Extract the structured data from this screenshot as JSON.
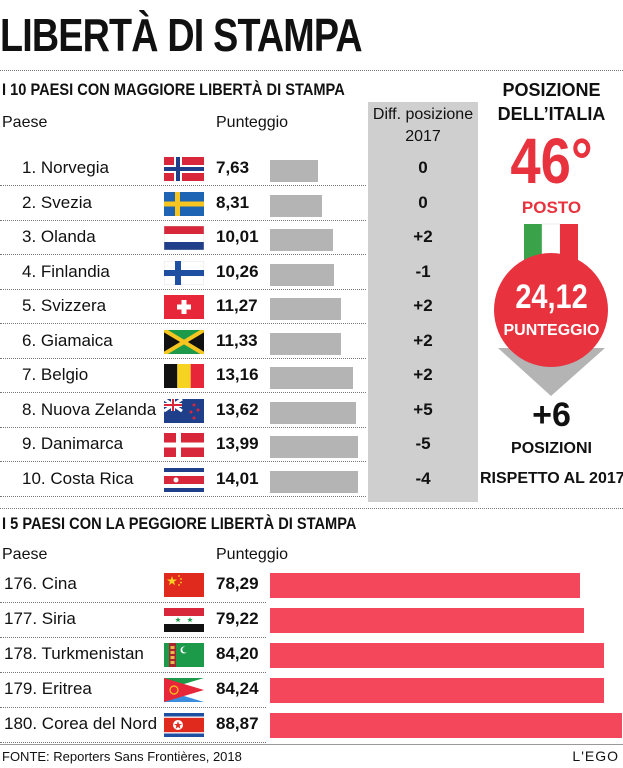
{
  "title": "LIBERTÀ DI STAMPA",
  "top": {
    "section_title": "I 10 PAESI CON MAGGIORE LIBERTÀ DI STAMPA",
    "col_country": "Paese",
    "col_score": "Punteggio",
    "col_diff_line1": "Diff. posizione",
    "col_diff_line2": "2017"
  },
  "bottom": {
    "section_title": "I 5 PAESI CON LA PEGGIORE LIBERTÀ DI STAMPA",
    "col_country": "Paese",
    "col_score": "Punteggio"
  },
  "italy": {
    "heading_line1": "POSIZIONE",
    "heading_line2": "DELL’ITALIA",
    "position": "46°",
    "position_label": "POSTO",
    "score": "24,12",
    "score_label": "PUNTEGGIO",
    "change": "+6",
    "change_label_line1": "POSIZIONI",
    "change_label_line2": "RISPETTO AL 2017"
  },
  "footer": {
    "source": "FONTE:  Reporters Sans Frontières, 2018",
    "brand": "L'EGO"
  },
  "colors": {
    "best_bar": "#b4b4b4",
    "worst_bar": "#f5475c",
    "accent_red": "#e8333f",
    "diff_column": "#cfcfcf"
  },
  "chart_data": [
    {
      "type": "bar",
      "title": "I 10 PAESI CON MAGGIORE LIBERTÀ DI STAMPA",
      "categories": [
        "1. Norvegia",
        "2. Svezia",
        "3. Olanda",
        "4. Finlandia",
        "5. Svizzera",
        "6. Giamaica",
        "7. Belgio",
        "8. Nuova Zelanda",
        "9. Danimarca",
        "10. Costa Rica"
      ],
      "values": [
        7.63,
        8.31,
        10.01,
        10.26,
        11.27,
        11.33,
        13.16,
        13.62,
        13.99,
        14.01
      ],
      "value_labels": [
        "7,63",
        "8,31",
        "10,01",
        "10,26",
        "11,27",
        "11,33",
        "13,16",
        "13,62",
        "13,99",
        "14,01"
      ],
      "diff_2017": [
        "0",
        "0",
        "+2",
        "-1",
        "+2",
        "+2",
        "+2",
        "+5",
        "-5",
        "-4"
      ],
      "flags": [
        "flag-norway-icon",
        "flag-sweden-icon",
        "flag-netherlands-icon",
        "flag-finland-icon",
        "flag-switzerland-icon",
        "flag-jamaica-icon",
        "flag-belgium-icon",
        "flag-new-zealand-icon",
        "flag-denmark-icon",
        "flag-costa-rica-icon"
      ]
    },
    {
      "type": "bar",
      "title": "I 5 PAESI CON LA PEGGIORE LIBERTÀ DI STAMPA",
      "categories": [
        "176. Cina",
        "177. Siria",
        "178. Turkmenistan",
        "179. Eritrea",
        "180. Corea del Nord"
      ],
      "values": [
        78.29,
        79.22,
        84.2,
        84.24,
        88.87
      ],
      "value_labels": [
        "78,29",
        "79,22",
        "84,20",
        "84,24",
        "88,87"
      ],
      "flags": [
        "flag-china-icon",
        "flag-syria-icon",
        "flag-turkmenistan-icon",
        "flag-eritrea-icon",
        "flag-north-korea-icon"
      ]
    }
  ]
}
